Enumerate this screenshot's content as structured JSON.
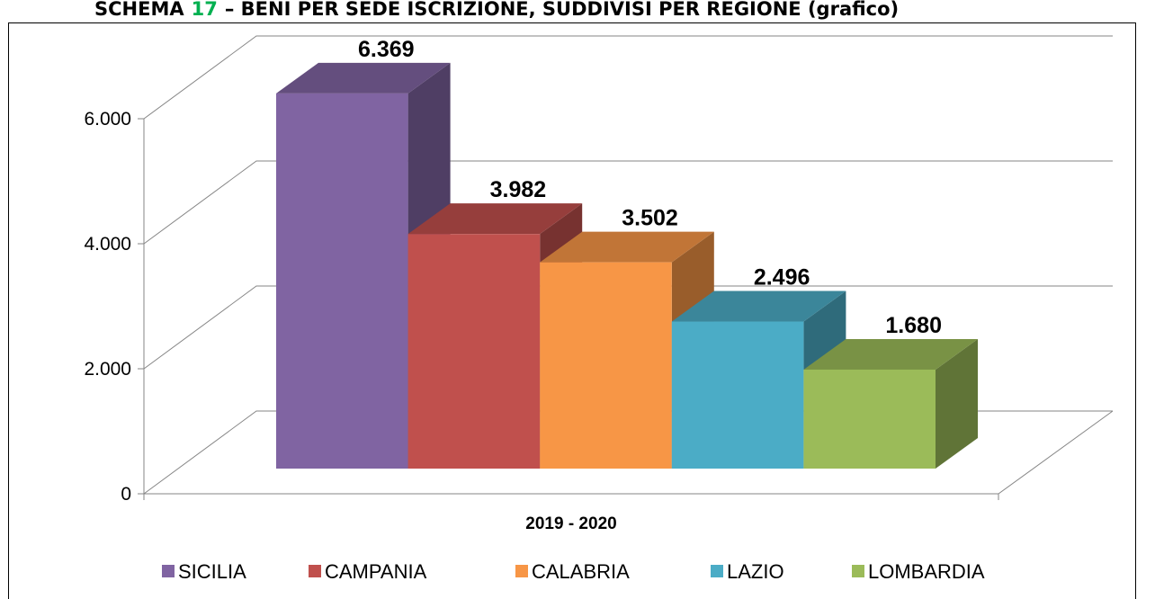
{
  "chart_data": {
    "type": "bar3d",
    "title": [
      "SCHEMA",
      "17",
      "– BENI PER SEDE ISCRIZIONE, SUDDIVISI PER REGIONE (grafico)"
    ],
    "title_colors": [
      "#000000",
      "#00b050",
      "#000000"
    ],
    "categories": [
      "2019 - 2020"
    ],
    "series": [
      {
        "name": "SICILIA",
        "color": "#8064a2",
        "values": [
          6369
        ],
        "value_labels": [
          "6.369"
        ]
      },
      {
        "name": "CAMPANIA",
        "color": "#c0504d",
        "values": [
          3982
        ],
        "value_labels": [
          "3.982"
        ]
      },
      {
        "name": "CALABRIA",
        "color": "#f79646",
        "values": [
          3502
        ],
        "value_labels": [
          "3.502"
        ]
      },
      {
        "name": "LAZIO",
        "color": "#4bacc6",
        "values": [
          2496
        ],
        "value_labels": [
          "2.496"
        ]
      },
      {
        "name": "LOMBARDIA",
        "color": "#9bbb59",
        "values": [
          1680
        ],
        "value_labels": [
          "1.680"
        ]
      }
    ],
    "ylim": [
      0,
      6000
    ],
    "yticks": [
      0,
      {
        "value": 2000,
        "label": "2.000"
      },
      {
        "value": 4000,
        "label": "4.000"
      },
      {
        "value": 6000,
        "label": "6.000"
      }
    ],
    "grid": true,
    "legend": "bottom"
  }
}
